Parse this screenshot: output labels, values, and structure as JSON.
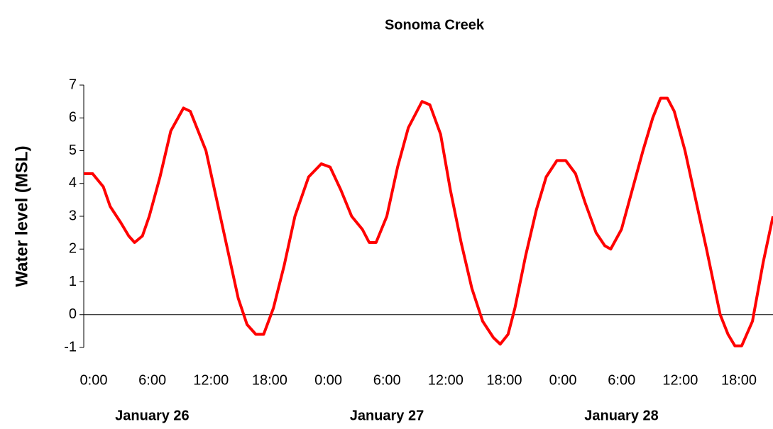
{
  "chart_data": {
    "type": "line",
    "title": "Sonoma Creek",
    "y_label": "Water level (MSL)",
    "day_labels": [
      "January 26",
      "January 27",
      "January 28"
    ],
    "x": [
      0,
      0.9,
      2.0,
      2.7,
      3.8,
      4.6,
      5.2,
      6.0,
      6.7,
      7.8,
      8.9,
      10.2,
      10.9,
      12.5,
      13.6,
      14.7,
      15.8,
      16.7,
      17.6,
      18.4,
      19.4,
      20.5,
      21.6,
      23.0,
      24.3,
      25.2,
      26.3,
      27.4,
      28.5,
      29.2,
      29.9,
      31.0,
      32.1,
      33.2,
      34.6,
      35.4,
      36.5,
      37.5,
      38.6,
      39.7,
      40.8,
      41.9,
      42.6,
      43.4,
      44.1,
      45.2,
      46.3,
      47.3,
      48.4,
      49.3,
      50.3,
      51.3,
      52.4,
      53.3,
      53.9,
      55.0,
      56.1,
      57.2,
      58.2,
      59.0,
      59.7,
      60.4,
      61.5,
      62.6,
      63.7,
      64.4,
      65.1,
      65.9,
      66.6,
      67.3,
      68.4,
      69.5,
      70.5
    ],
    "series": [
      {
        "name": "Water level",
        "color": "#ff0000",
        "values": [
          4.3,
          4.3,
          3.9,
          3.3,
          2.8,
          2.4,
          2.2,
          2.4,
          3.0,
          4.2,
          5.6,
          6.3,
          6.2,
          5.0,
          3.5,
          2.0,
          0.5,
          -0.3,
          -0.6,
          -0.6,
          0.2,
          1.5,
          3.0,
          4.2,
          4.6,
          4.5,
          3.8,
          3.0,
          2.6,
          2.2,
          2.2,
          3.0,
          4.5,
          5.7,
          6.5,
          6.4,
          5.5,
          3.8,
          2.2,
          0.8,
          -0.2,
          -0.7,
          -0.9,
          -0.6,
          0.2,
          1.8,
          3.2,
          4.2,
          4.7,
          4.7,
          4.3,
          3.4,
          2.5,
          2.1,
          2.0,
          2.6,
          3.8,
          5.0,
          6.0,
          6.6,
          6.6,
          6.2,
          5.0,
          3.5,
          2.0,
          1.0,
          0.0,
          -0.6,
          -0.95,
          -0.95,
          -0.2,
          1.6,
          3.0
        ]
      }
    ],
    "xlim": [
      0,
      70.5
    ],
    "xticks": [
      {
        "value": 0,
        "label": "0:00"
      },
      {
        "value": 6,
        "label": "6:00"
      },
      {
        "value": 12,
        "label": "12:00"
      },
      {
        "value": 18,
        "label": "18:00"
      },
      {
        "value": 24,
        "label": "0:00"
      },
      {
        "value": 30,
        "label": "6:00"
      },
      {
        "value": 36,
        "label": "12:00"
      },
      {
        "value": 42,
        "label": "18:00"
      },
      {
        "value": 48,
        "label": "0:00"
      },
      {
        "value": 54,
        "label": "6:00"
      },
      {
        "value": 60,
        "label": "12:00"
      },
      {
        "value": 66,
        "label": "18:00"
      }
    ],
    "ylim": [
      -1,
      7
    ],
    "yticks": [
      -1,
      0,
      1,
      2,
      3,
      4,
      5,
      6,
      7
    ],
    "zero_line": true
  }
}
